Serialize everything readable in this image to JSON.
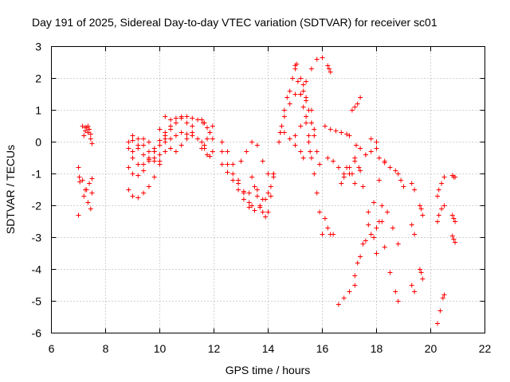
{
  "chart_data": {
    "type": "scatter",
    "title": "Day 191 of 2025, Sidereal Day-to-day VTEC variation (SDTVAR) for receiver sc01",
    "xlabel": "GPS time / hours",
    "ylabel": "SDTVAR / TECUs",
    "xlim": [
      6,
      22
    ],
    "ylim": [
      -6,
      3
    ],
    "xticks": [
      "6",
      "8",
      "10",
      "12",
      "14",
      "16",
      "18",
      "20",
      "22"
    ],
    "yticks": [
      "3",
      "2",
      "1",
      "0",
      "-1",
      "-2",
      "-3",
      "-4",
      "-5",
      "-6"
    ],
    "grid": true,
    "marker": "+",
    "series_color": "#ff0000",
    "tracks": [
      {
        "x": [
          7.0,
          7.03,
          7.05
        ],
        "y": [
          -0.8,
          -1.1,
          -1.25
        ]
      },
      {
        "x": [
          7.0
        ],
        "y": [
          -2.3
        ]
      },
      {
        "x": [
          7.15,
          7.25,
          7.35,
          7.45,
          7.5
        ],
        "y": [
          0.5,
          0.45,
          0.3,
          0.1,
          -0.05
        ]
      },
      {
        "x": [
          7.2,
          7.25,
          7.3,
          7.35,
          7.4,
          7.45
        ],
        "y": [
          0.2,
          0.35,
          0.45,
          0.5,
          0.4,
          0.25
        ]
      },
      {
        "x": [
          7.15,
          7.25,
          7.35,
          7.45,
          7.5
        ],
        "y": [
          -1.2,
          -1.5,
          -1.9,
          -2.1,
          -1.6
        ]
      },
      {
        "x": [
          7.2,
          7.3,
          7.4,
          7.5
        ],
        "y": [
          -1.7,
          -1.5,
          -1.3,
          -1.15
        ]
      },
      {
        "x": [
          8.85,
          9.0,
          9.2,
          9.4,
          9.6,
          9.8,
          10.0,
          10.2,
          10.4,
          10.6,
          10.8,
          11.0,
          11.2
        ],
        "y": [
          -0.2,
          -0.5,
          -0.7,
          -0.7,
          -0.5,
          -0.3,
          -0.1,
          0.2,
          0.4,
          0.6,
          0.75,
          0.8,
          0.75
        ]
      },
      {
        "x": [
          8.85,
          9.0,
          9.2,
          9.4,
          9.6,
          9.8,
          10.0,
          10.2,
          10.4,
          10.6,
          10.8,
          11.0,
          11.2
        ],
        "y": [
          -0.8,
          -1.0,
          -1.05,
          -0.9,
          -0.6,
          -0.3,
          -0.1,
          0.0,
          0.1,
          0.2,
          0.3,
          0.25,
          0.2
        ]
      },
      {
        "x": [
          8.85,
          9.0,
          9.2,
          9.4,
          9.6,
          9.8,
          10.0
        ],
        "y": [
          0.0,
          0.05,
          -0.2,
          -0.4,
          -0.55,
          -0.6,
          -0.4
        ]
      },
      {
        "x": [
          8.85,
          9.0,
          9.2,
          9.4,
          9.6,
          9.8,
          10.0,
          10.2
        ],
        "y": [
          -1.5,
          -1.7,
          -1.75,
          -1.6,
          -1.4,
          -1.1,
          -0.7,
          -0.3
        ]
      },
      {
        "x": [
          9.0,
          9.2,
          9.4,
          9.6,
          9.8,
          10.0,
          10.2,
          10.4
        ],
        "y": [
          -0.3,
          -0.1,
          0.1,
          0.0,
          -0.2,
          0.05,
          0.3,
          0.5
        ]
      },
      {
        "x": [
          9.0,
          9.2,
          9.4,
          9.6,
          9.8,
          10.0
        ],
        "y": [
          0.2,
          0.1,
          -0.1,
          -0.3,
          -0.5,
          -0.6
        ]
      },
      {
        "x": [
          10.0,
          10.2,
          10.4,
          10.6,
          10.8,
          11.0,
          11.2,
          11.4,
          11.6
        ],
        "y": [
          0.4,
          0.1,
          -0.2,
          -0.3,
          -0.1,
          0.1,
          0.5,
          0.7,
          0.6
        ]
      },
      {
        "x": [
          10.2,
          10.4,
          10.6,
          10.8,
          11.0,
          11.2,
          11.4
        ],
        "y": [
          0.8,
          0.7,
          0.75,
          0.8,
          0.6,
          0.3,
          0.1
        ]
      },
      {
        "x": [
          11.55,
          11.65,
          11.75,
          11.85,
          11.95
        ],
        "y": [
          0.7,
          0.6,
          0.45,
          0.3,
          0.1
        ]
      },
      {
        "x": [
          11.55,
          11.65,
          11.75,
          11.85,
          11.95
        ],
        "y": [
          0.0,
          -0.2,
          -0.4,
          -0.45,
          -0.3
        ]
      },
      {
        "x": [
          11.55,
          11.65,
          11.75,
          11.85,
          11.95
        ],
        "y": [
          -0.2,
          -0.1,
          0.1,
          0.3,
          0.5
        ]
      },
      {
        "x": [
          12.3,
          12.5,
          12.7,
          12.9,
          13.1,
          13.3,
          13.4
        ],
        "y": [
          0.0,
          -0.3,
          -0.7,
          -1.2,
          -1.6,
          -1.9,
          -2.0
        ]
      },
      {
        "x": [
          12.3,
          12.5,
          12.7,
          12.9,
          13.1,
          13.3,
          13.5,
          13.7,
          13.9,
          14.1,
          14.2
        ],
        "y": [
          -0.7,
          -0.95,
          -1.2,
          -1.5,
          -1.8,
          -2.05,
          -2.15,
          -2.05,
          -1.8,
          -1.4,
          -1.0
        ]
      },
      {
        "x": [
          12.3,
          12.5,
          12.7,
          12.9,
          13.1,
          13.3
        ],
        "y": [
          -0.3,
          -0.7,
          -1.0,
          -1.3,
          -1.55,
          -1.6
        ]
      },
      {
        "x": [
          13.0,
          13.2,
          13.4,
          13.6,
          13.8,
          14.0
        ],
        "y": [
          -0.6,
          -0.3,
          0.0,
          -0.1,
          -0.6,
          -1.0
        ]
      },
      {
        "x": [
          13.5,
          13.6,
          13.7,
          13.8,
          13.9,
          14.0,
          14.1,
          14.2
        ],
        "y": [
          -1.4,
          -1.7,
          -2.0,
          -2.2,
          -2.35,
          -2.2,
          -1.7,
          -1.0
        ]
      },
      {
        "x": [
          13.4,
          13.6,
          13.8,
          14.0,
          14.2
        ],
        "y": [
          -1.1,
          -1.5,
          -1.8,
          -1.6,
          -1.1
        ]
      },
      {
        "x": [
          14.4,
          14.5,
          14.6,
          14.7,
          14.8,
          14.9,
          15.0,
          15.05
        ],
        "y": [
          0.0,
          0.5,
          1.0,
          1.4,
          1.6,
          2.0,
          2.3,
          2.45
        ]
      },
      {
        "x": [
          14.45,
          14.6,
          14.8,
          15.0,
          15.2,
          15.4,
          15.6,
          15.8,
          16.0
        ],
        "y": [
          0.3,
          0.8,
          1.2,
          1.5,
          1.5,
          1.9,
          2.3,
          2.6,
          2.65
        ]
      },
      {
        "x": [
          14.45,
          14.6,
          14.8,
          15.0,
          15.2,
          15.3
        ],
        "y": [
          0.3,
          0.3,
          0.1,
          -0.1,
          -0.3,
          -0.5
        ]
      },
      {
        "x": [
          15.0,
          15.1,
          15.2,
          15.3,
          15.4,
          15.5,
          15.55
        ],
        "y": [
          2.4,
          1.9,
          1.5,
          1.1,
          0.6,
          0.2,
          -0.3
        ]
      },
      {
        "x": [
          15.3,
          15.4,
          15.5,
          15.6,
          15.7,
          15.8,
          15.9
        ],
        "y": [
          1.6,
          1.3,
          1.0,
          0.6,
          0.2,
          -0.3,
          -0.7
        ]
      },
      {
        "x": [
          15.5,
          15.6,
          15.7,
          15.8,
          15.9,
          16.0
        ],
        "y": [
          0.0,
          -0.5,
          -1.0,
          -1.6,
          -2.2,
          -2.9
        ]
      },
      {
        "x": [
          15.0,
          15.2,
          15.4,
          15.6
        ],
        "y": [
          0.2,
          0.5,
          0.8,
          1.0
        ]
      },
      {
        "x": [
          15.2,
          15.3,
          15.4,
          15.5,
          15.6,
          15.7
        ],
        "y": [
          2.0,
          1.8,
          1.4,
          1.0,
          0.6,
          0.4
        ]
      },
      {
        "x": [
          16.2,
          16.25,
          16.3
        ],
        "y": [
          2.4,
          2.3,
          2.2
        ]
      },
      {
        "x": [
          16.1,
          16.2,
          16.3,
          16.4
        ],
        "y": [
          -2.4,
          -2.7,
          -2.9,
          -2.9
        ]
      },
      {
        "x": [
          16.1,
          16.3,
          16.5,
          16.7,
          16.9,
          17.0
        ],
        "y": [
          0.5,
          0.4,
          0.35,
          0.3,
          0.25,
          0.2
        ]
      },
      {
        "x": [
          16.2,
          16.4,
          16.6,
          16.8,
          17.0,
          17.2
        ],
        "y": [
          -0.5,
          -0.6,
          -0.8,
          -1.1,
          -1.0,
          -0.6
        ]
      },
      {
        "x": [
          16.7,
          16.8,
          16.9,
          17.0,
          17.1,
          17.2
        ],
        "y": [
          -1.3,
          -1.0,
          -0.8,
          -0.8,
          -1.0,
          -1.3
        ]
      },
      {
        "x": [
          16.6,
          16.8,
          17.0,
          17.2
        ],
        "y": [
          -5.1,
          -4.9,
          -4.7,
          -4.5
        ]
      },
      {
        "x": [
          17.2,
          17.4,
          17.6,
          17.8,
          18.0,
          18.2
        ],
        "y": [
          -4.2,
          -3.6,
          -3.1,
          -2.9,
          -2.7,
          -2.5
        ]
      },
      {
        "x": [
          17.2,
          17.35,
          17.5,
          17.7,
          17.9,
          18.0
        ],
        "y": [
          -0.5,
          -0.8,
          -1.4,
          -2.2,
          -3.0,
          -3.5
        ]
      },
      {
        "x": [
          17.25,
          17.4,
          17.6,
          17.8,
          18.0
        ],
        "y": [
          -0.1,
          -0.2,
          -0.4,
          -0.3,
          0.0
        ]
      },
      {
        "x": [
          17.3,
          17.5,
          17.7,
          17.9,
          18.1,
          18.3
        ],
        "y": [
          -3.8,
          -3.2,
          -2.6,
          -1.9,
          -1.2,
          -0.6
        ]
      },
      {
        "x": [
          17.4,
          17.6,
          17.8,
          18.0
        ],
        "y": [
          -0.9,
          -0.4,
          0.1,
          -0.2
        ]
      },
      {
        "x": [
          17.1,
          17.2,
          17.3,
          17.4
        ],
        "y": [
          1.0,
          1.1,
          1.2,
          1.4
        ]
      },
      {
        "x": [
          18.1,
          18.3,
          18.5,
          18.7,
          18.8
        ],
        "y": [
          -2.5,
          -3.3,
          -4.1,
          -4.7,
          -5.0
        ]
      },
      {
        "x": [
          18.2,
          18.4,
          18.6,
          18.8
        ],
        "y": [
          -2.0,
          -2.2,
          -2.7,
          -3.2
        ]
      },
      {
        "x": [
          18.1,
          18.3,
          18.5,
          18.7
        ],
        "y": [
          -0.5,
          -0.65,
          -0.8,
          -0.9
        ]
      },
      {
        "x": [
          18.8,
          18.9,
          19.0
        ],
        "y": [
          -1.0,
          -1.2,
          -1.4
        ]
      },
      {
        "x": [
          19.3,
          19.4
        ],
        "y": [
          -1.3,
          -1.5
        ]
      },
      {
        "x": [
          19.3,
          19.4
        ],
        "y": [
          -2.6,
          -2.9
        ]
      },
      {
        "x": [
          19.3,
          19.4
        ],
        "y": [
          -4.5,
          -4.7
        ]
      },
      {
        "x": [
          19.6,
          19.65,
          19.7
        ],
        "y": [
          -2.0,
          -2.1,
          -2.3
        ]
      },
      {
        "x": [
          19.6,
          19.65,
          19.7
        ],
        "y": [
          -4.0,
          -4.1,
          -4.3
        ]
      },
      {
        "x": [
          20.25,
          20.3,
          20.4,
          20.5
        ],
        "y": [
          -1.7,
          -1.5,
          -1.3,
          -1.1
        ]
      },
      {
        "x": [
          20.25,
          20.3,
          20.4,
          20.5
        ],
        "y": [
          -2.5,
          -2.3,
          -2.1,
          -2.0
        ]
      },
      {
        "x": [
          20.25,
          20.35,
          20.45,
          20.5
        ],
        "y": [
          -5.7,
          -5.3,
          -4.9,
          -4.8
        ]
      },
      {
        "x": [
          20.8,
          20.85,
          20.9
        ],
        "y": [
          -1.05,
          -1.1,
          -1.1
        ]
      },
      {
        "x": [
          20.8,
          20.85,
          20.9
        ],
        "y": [
          -2.3,
          -2.4,
          -2.5
        ]
      },
      {
        "x": [
          20.8,
          20.85,
          20.9
        ],
        "y": [
          -2.95,
          -3.05,
          -3.15
        ]
      }
    ]
  }
}
